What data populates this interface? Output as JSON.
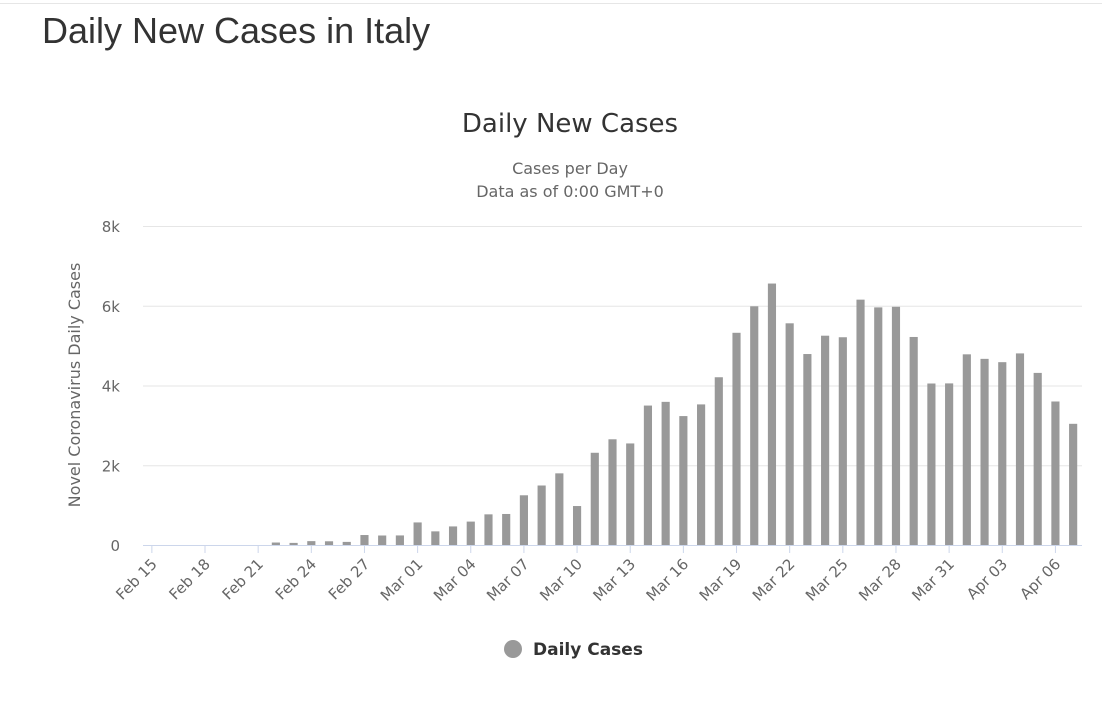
{
  "page": {
    "title": "Daily New Cases in Italy"
  },
  "chart_data": {
    "type": "bar",
    "title": "Daily New Cases",
    "subtitle": [
      "Cases per Day",
      "Data as of 0:00 GMT+0"
    ],
    "ylabel": "Novel Coronavirus Daily Cases",
    "xlabel": "",
    "ylim": [
      0,
      8000
    ],
    "yticks": [
      "0",
      "2k",
      "4k",
      "6k",
      "8k"
    ],
    "grid": true,
    "legend_position": "bottom-center",
    "bar_color": "#999999",
    "categories": [
      "Feb 15",
      "Feb 16",
      "Feb 17",
      "Feb 18",
      "Feb 19",
      "Feb 20",
      "Feb 21",
      "Feb 22",
      "Feb 23",
      "Feb 24",
      "Feb 25",
      "Feb 26",
      "Feb 27",
      "Feb 28",
      "Feb 29",
      "Mar 01",
      "Mar 02",
      "Mar 03",
      "Mar 04",
      "Mar 05",
      "Mar 06",
      "Mar 07",
      "Mar 08",
      "Mar 09",
      "Mar 10",
      "Mar 11",
      "Mar 12",
      "Mar 13",
      "Mar 14",
      "Mar 15",
      "Mar 16",
      "Mar 17",
      "Mar 18",
      "Mar 19",
      "Mar 20",
      "Mar 21",
      "Mar 22",
      "Mar 23",
      "Mar 24",
      "Mar 25",
      "Mar 26",
      "Mar 27",
      "Mar 28",
      "Mar 29",
      "Mar 30",
      "Mar 31",
      "Apr 01",
      "Apr 02",
      "Apr 03",
      "Apr 04",
      "Apr 05",
      "Apr 06",
      "Apr 07"
    ],
    "xtick_labels": [
      "Feb 15",
      "Feb 18",
      "Feb 21",
      "Feb 24",
      "Feb 27",
      "Mar 01",
      "Mar 04",
      "Mar 07",
      "Mar 10",
      "Mar 13",
      "Mar 16",
      "Mar 19",
      "Mar 22",
      "Mar 25",
      "Mar 28",
      "Mar 31",
      "Apr 03",
      "Apr 06"
    ],
    "series": [
      {
        "name": "Daily Cases",
        "values": [
          0,
          0,
          0,
          0,
          0,
          0,
          0,
          62,
          53,
          97,
          93,
          78,
          250,
          238,
          240,
          566,
          342,
          466,
          587,
          769,
          778,
          1247,
          1492,
          1797,
          977,
          2313,
          2651,
          2547,
          3497,
          3590,
          3233,
          3526,
          4207,
          5322,
          5986,
          6557,
          5560,
          4789,
          5249,
          5210,
          6153,
          5959,
          5974,
          5217,
          4050,
          4053,
          4782,
          4668,
          4585,
          4805,
          4316,
          3599,
          3039
        ]
      }
    ]
  }
}
